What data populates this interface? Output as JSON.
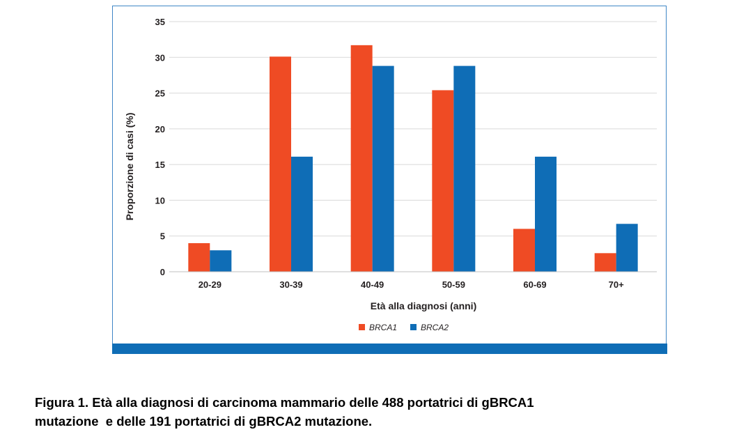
{
  "chart_data": {
    "type": "bar",
    "categories": [
      "20-29",
      "30-39",
      "40-49",
      "50-59",
      "60-69",
      "70+"
    ],
    "series": [
      {
        "name": "BRCA1",
        "values": [
          4.0,
          30.1,
          31.7,
          25.4,
          6.0,
          2.6
        ],
        "color": "#ef4b24"
      },
      {
        "name": "BRCA2",
        "values": [
          3.0,
          16.1,
          28.8,
          28.8,
          16.1,
          6.7
        ],
        "color": "#0f6db6"
      }
    ],
    "xlabel": "Età alla diagnosi (anni)",
    "ylabel": "Proporzione di casi (%)",
    "ylim": [
      0,
      35
    ],
    "yticks": [
      0,
      5,
      10,
      15,
      20,
      25,
      30,
      35
    ],
    "grid": true,
    "legend_position": "bottom-center"
  },
  "caption": {
    "line1": "Figura 1. Età alla diagnosi di carcinoma mammario delle 488 portatrici di gBRCA1",
    "line2": "mutazione  e delle 191 portatrici di gBRCA2 mutazione."
  },
  "colors": {
    "frame_bar": "#0f6db6",
    "gridline": "#d9d9d9"
  }
}
